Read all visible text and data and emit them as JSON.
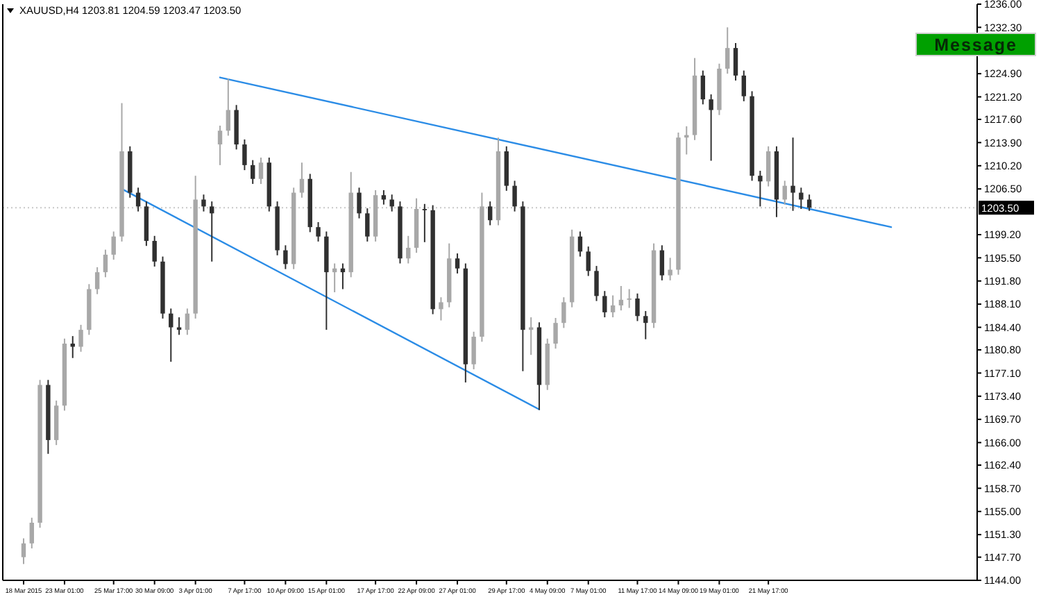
{
  "chart_data": {
    "type": "candlestick",
    "title": "XAUUSD,H4  1203.81 1204.59 1203.47 1203.50",
    "categories": [
      "18 Mar 2015",
      null,
      null,
      null,
      null,
      "23 Mar 01:00",
      null,
      null,
      null,
      null,
      null,
      "25 Mar 17:00",
      null,
      null,
      null,
      null,
      "30 Mar 09:00",
      null,
      null,
      null,
      null,
      "3 Apr 01:00",
      null,
      null,
      null,
      null,
      null,
      "7 Apr 17:00",
      null,
      null,
      null,
      null,
      "10 Apr 09:00",
      null,
      null,
      null,
      null,
      "15 Apr 01:00",
      null,
      null,
      null,
      null,
      null,
      "17 Apr 17:00",
      null,
      null,
      null,
      null,
      "22 Apr 09:00",
      null,
      null,
      null,
      null,
      "27 Apr 01:00",
      null,
      null,
      null,
      null,
      null,
      "29 Apr 17:00",
      null,
      null,
      null,
      null,
      "4 May 09:00",
      null,
      null,
      null,
      null,
      "7 May 01:00",
      null,
      null,
      null,
      null,
      null,
      "11 May 17:00",
      null,
      null,
      null,
      null,
      "14 May 09:00",
      null,
      null,
      null,
      null,
      "19 May 01:00",
      null,
      null,
      null,
      null,
      null,
      "21 May 17:00",
      null,
      null,
      null,
      null,
      null,
      null,
      null,
      null,
      null,
      null,
      null,
      null,
      null,
      null,
      null,
      null,
      null,
      null,
      null,
      null,
      null,
      null,
      null,
      null,
      null
    ],
    "ohlc": [
      [
        1147.7,
        1150.7,
        1146.6,
        1149.9
      ],
      [
        1149.9,
        1154.0,
        1149.1,
        1153.2
      ],
      [
        1153.2,
        1176.0,
        1152.4,
        1175.2
      ],
      [
        1175.2,
        1176.0,
        1164.2,
        1166.4
      ],
      [
        1166.4,
        1172.7,
        1165.6,
        1171.9
      ],
      [
        1171.9,
        1182.6,
        1171.1,
        1181.8
      ],
      [
        1181.8,
        1183.0,
        1179.5,
        1181.3
      ],
      [
        1181.3,
        1184.8,
        1180.5,
        1184.0
      ],
      [
        1184.0,
        1191.3,
        1183.2,
        1190.5
      ],
      [
        1190.5,
        1194.0,
        1189.7,
        1193.2
      ],
      [
        1193.2,
        1196.8,
        1192.4,
        1196.0
      ],
      [
        1196.0,
        1199.7,
        1195.2,
        1198.9
      ],
      [
        1198.9,
        1220.2,
        1198.1,
        1212.5
      ],
      [
        1212.5,
        1213.3,
        1205.1,
        1205.9
      ],
      [
        1205.9,
        1206.7,
        1202.9,
        1203.7
      ],
      [
        1203.7,
        1204.5,
        1197.4,
        1198.2
      ],
      [
        1198.2,
        1199.0,
        1194.1,
        1194.9
      ],
      [
        1194.9,
        1195.7,
        1185.8,
        1186.6
      ],
      [
        1186.6,
        1187.4,
        1178.9,
        1184.4
      ],
      [
        1184.4,
        1186.0,
        1183.2,
        1184.0
      ],
      [
        1184.0,
        1187.4,
        1183.2,
        1186.6
      ],
      [
        1186.6,
        1208.6,
        1185.8,
        1204.8
      ],
      [
        1204.8,
        1205.6,
        1202.9,
        1203.7
      ],
      [
        1203.7,
        1204.5,
        1194.9,
        1202.6
      ],
      [
        1213.6,
        1216.6,
        1210.3,
        1215.8
      ],
      [
        1215.8,
        1224.1,
        1215.0,
        1219.1
      ],
      [
        1219.1,
        1219.9,
        1212.8,
        1213.6
      ],
      [
        1213.6,
        1214.4,
        1209.5,
        1210.3
      ],
      [
        1210.3,
        1211.1,
        1207.3,
        1208.1
      ],
      [
        1208.1,
        1211.5,
        1207.3,
        1210.7
      ],
      [
        1210.7,
        1211.5,
        1202.9,
        1203.7
      ],
      [
        1203.7,
        1204.5,
        1195.9,
        1196.7
      ],
      [
        1196.7,
        1197.5,
        1193.7,
        1194.5
      ],
      [
        1194.5,
        1206.7,
        1193.7,
        1205.9
      ],
      [
        1205.9,
        1210.7,
        1205.1,
        1208.1
      ],
      [
        1208.1,
        1208.9,
        1199.6,
        1200.4
      ],
      [
        1200.4,
        1201.2,
        1198.1,
        1198.9
      ],
      [
        1198.9,
        1199.7,
        1184.0,
        1193.2
      ],
      [
        1193.2,
        1194.6,
        1190.0,
        1193.8
      ],
      [
        1193.8,
        1194.6,
        1190.5,
        1193.2
      ],
      [
        1193.2,
        1209.2,
        1192.4,
        1205.9
      ],
      [
        1205.9,
        1206.7,
        1201.8,
        1202.6
      ],
      [
        1202.6,
        1203.4,
        1198.1,
        1198.9
      ],
      [
        1198.9,
        1206.3,
        1198.1,
        1205.5
      ],
      [
        1205.5,
        1206.3,
        1204.0,
        1204.8
      ],
      [
        1204.8,
        1205.6,
        1202.9,
        1203.7
      ],
      [
        1203.7,
        1204.5,
        1194.6,
        1195.4
      ],
      [
        1195.4,
        1199.0,
        1194.6,
        1197.1
      ],
      [
        1197.1,
        1205.0,
        1196.3,
        1203.3
      ],
      [
        1203.3,
        1204.1,
        1198.0,
        1203.1
      ],
      [
        1203.1,
        1203.9,
        1186.5,
        1187.3
      ],
      [
        1187.3,
        1189.2,
        1185.5,
        1188.4
      ],
      [
        1188.4,
        1197.8,
        1187.6,
        1195.4
      ],
      [
        1195.4,
        1196.2,
        1193.0,
        1193.8
      ],
      [
        1193.8,
        1194.6,
        1175.6,
        1178.5
      ],
      [
        1178.5,
        1183.7,
        1177.7,
        1182.9
      ],
      [
        1182.9,
        1205.9,
        1182.1,
        1203.7
      ],
      [
        1203.7,
        1204.5,
        1200.7,
        1201.5
      ],
      [
        1201.5,
        1214.7,
        1200.7,
        1212.5
      ],
      [
        1212.5,
        1213.3,
        1206.2,
        1207.0
      ],
      [
        1207.0,
        1207.8,
        1202.9,
        1203.7
      ],
      [
        1203.7,
        1204.5,
        1177.4,
        1184.0
      ],
      [
        1184.0,
        1186.0,
        1180.0,
        1184.4
      ],
      [
        1184.4,
        1185.2,
        1171.2,
        1175.2
      ],
      [
        1175.2,
        1182.6,
        1174.4,
        1181.8
      ],
      [
        1181.8,
        1185.9,
        1181.0,
        1185.1
      ],
      [
        1185.1,
        1189.2,
        1184.3,
        1188.4
      ],
      [
        1188.4,
        1200.0,
        1187.6,
        1198.9
      ],
      [
        1198.9,
        1199.7,
        1195.7,
        1196.5
      ],
      [
        1196.5,
        1197.3,
        1192.6,
        1193.4
      ],
      [
        1193.4,
        1194.2,
        1188.6,
        1189.4
      ],
      [
        1189.4,
        1190.2,
        1186.0,
        1186.8
      ],
      [
        1186.8,
        1189.5,
        1186.0,
        1187.9
      ],
      [
        1187.9,
        1191.0,
        1187.1,
        1188.8
      ],
      [
        1188.8,
        1190.5,
        1187.5,
        1189.0
      ],
      [
        1189.0,
        1189.8,
        1185.4,
        1186.2
      ],
      [
        1186.2,
        1187.0,
        1182.5,
        1185.1
      ],
      [
        1185.1,
        1197.8,
        1184.3,
        1196.7
      ],
      [
        1196.7,
        1197.5,
        1191.9,
        1192.7
      ],
      [
        1192.7,
        1195.5,
        1191.9,
        1193.6
      ],
      [
        1193.6,
        1215.5,
        1192.8,
        1214.7
      ],
      [
        1214.7,
        1216.5,
        1212.0,
        1215.1
      ],
      [
        1215.1,
        1227.4,
        1214.3,
        1224.6
      ],
      [
        1224.6,
        1225.4,
        1220.0,
        1220.8
      ],
      [
        1220.8,
        1221.6,
        1211.0,
        1219.1
      ],
      [
        1219.1,
        1226.5,
        1218.3,
        1225.7
      ],
      [
        1225.7,
        1232.3,
        1224.9,
        1229.0
      ],
      [
        1229.0,
        1229.8,
        1223.8,
        1224.6
      ],
      [
        1224.6,
        1225.4,
        1220.5,
        1221.3
      ],
      [
        1221.3,
        1222.1,
        1207.8,
        1208.6
      ],
      [
        1208.6,
        1209.4,
        1203.7,
        1207.7
      ],
      [
        1207.7,
        1213.3,
        1206.9,
        1212.5
      ],
      [
        1212.5,
        1213.3,
        1202.0,
        1204.8
      ],
      [
        1204.8,
        1207.8,
        1204.0,
        1207.0
      ],
      [
        1207.0,
        1214.7,
        1203.0,
        1205.9
      ],
      [
        1205.9,
        1206.7,
        1203.3,
        1204.8
      ],
      [
        1204.8,
        1205.6,
        1203.0,
        1203.5
      ],
      null,
      null,
      null,
      null,
      null,
      null,
      null,
      null,
      null,
      null,
      null,
      null,
      null,
      null,
      null,
      null,
      null,
      null,
      null,
      null
    ],
    "series": [
      {
        "type": "line",
        "color": "#2b8ce6",
        "values": [
          null,
          null,
          null,
          null,
          null,
          null,
          null,
          null,
          null,
          null,
          null,
          null,
          null,
          null,
          null,
          null,
          null,
          null,
          null,
          null,
          null,
          null,
          null,
          null,
          1224.3,
          null,
          null,
          null,
          null,
          null,
          null,
          null,
          null,
          null,
          null,
          null,
          null,
          null,
          null,
          null,
          null,
          null,
          null,
          null,
          null,
          null,
          null,
          null,
          null,
          null,
          null,
          null,
          null,
          null,
          null,
          null,
          null,
          null,
          null,
          null,
          null,
          null,
          null,
          null,
          null,
          null,
          null,
          null,
          null,
          null,
          null,
          null,
          null,
          null,
          null,
          null,
          null,
          null,
          null,
          null,
          null,
          null,
          null,
          null,
          null,
          null,
          null,
          null,
          null,
          null,
          null,
          null,
          null,
          null,
          null,
          null,
          null,
          null,
          null,
          null,
          null,
          null,
          null,
          null,
          null,
          null,
          1200.4,
          null,
          null,
          null,
          null,
          null,
          null,
          null,
          null,
          null,
          null
        ]
      },
      {
        "type": "line",
        "color": "#2b8ce6",
        "values": [
          null,
          null,
          null,
          null,
          null,
          null,
          null,
          null,
          null,
          null,
          null,
          null,
          1206.5,
          null,
          null,
          null,
          null,
          null,
          null,
          null,
          null,
          null,
          null,
          null,
          null,
          null,
          null,
          null,
          null,
          null,
          null,
          null,
          null,
          null,
          null,
          null,
          null,
          null,
          null,
          null,
          null,
          null,
          null,
          null,
          null,
          null,
          null,
          null,
          null,
          null,
          null,
          null,
          null,
          null,
          null,
          null,
          null,
          null,
          null,
          null,
          null,
          null,
          null,
          1171.3,
          null,
          null,
          null,
          null,
          null,
          null,
          null,
          null,
          null,
          null,
          null,
          null,
          null,
          null,
          null,
          null,
          null,
          null,
          null,
          null,
          null,
          null,
          null,
          null,
          null,
          null,
          null,
          null,
          null,
          null,
          null,
          null,
          null,
          null,
          null,
          null,
          null,
          null,
          null,
          null,
          null,
          null,
          null,
          null,
          null,
          null,
          null,
          null,
          null,
          null,
          null,
          null,
          null
        ]
      }
    ],
    "ref_lines": [
      {
        "axis": "y",
        "value": 1203.5,
        "label": "1203.50",
        "color": "#c8c8c8",
        "line_style": "dotted"
      }
    ],
    "annotations": [
      "Message"
    ],
    "ylim": [
      1144,
      1236
    ],
    "yticks": [
      {
        "value": 1144,
        "label": "1144.00"
      },
      {
        "value": 1147.7,
        "label": "1147.70"
      },
      {
        "value": 1151.3,
        "label": "1151.30"
      },
      {
        "value": 1155,
        "label": "1155.00"
      },
      {
        "value": 1158.7,
        "label": "1158.70"
      },
      {
        "value": 1162.4,
        "label": "1162.40"
      },
      {
        "value": 1166,
        "label": "1166.00"
      },
      {
        "value": 1169.7,
        "label": "1169.70"
      },
      {
        "value": 1173.4,
        "label": "1173.40"
      },
      {
        "value": 1177.1,
        "label": "1177.10"
      },
      {
        "value": 1180.8,
        "label": "1180.80"
      },
      {
        "value": 1184.4,
        "label": "1184.40"
      },
      {
        "value": 1188.1,
        "label": "1188.10"
      },
      {
        "value": 1191.8,
        "label": "1191.80"
      },
      {
        "value": 1195.5,
        "label": "1195.50"
      },
      {
        "value": 1199.2,
        "label": "1199.20"
      },
      {
        "value": 1206.5,
        "label": "1206.50"
      },
      {
        "value": 1210.2,
        "label": "1210.20"
      },
      {
        "value": 1213.9,
        "label": "1213.90"
      },
      {
        "value": 1217.6,
        "label": "1217.60"
      },
      {
        "value": 1221.2,
        "label": "1221.20"
      },
      {
        "value": 1224.9,
        "label": "1224.90"
      },
      {
        "value": 1232.3,
        "label": "1232.30"
      },
      {
        "value": 1236,
        "label": "1236.00"
      }
    ]
  }
}
